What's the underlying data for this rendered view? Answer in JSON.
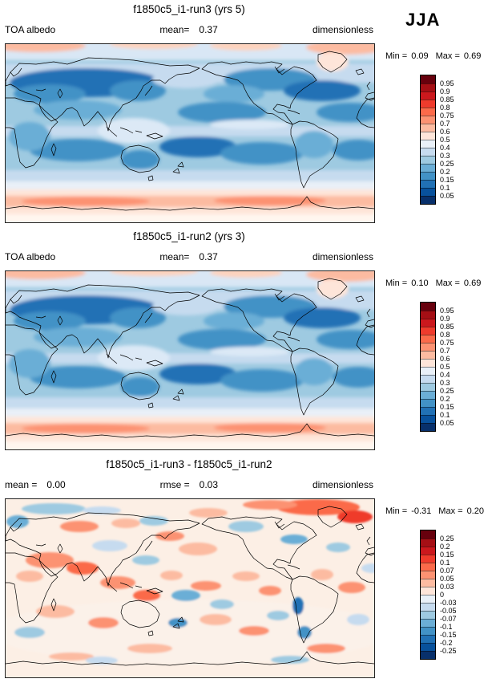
{
  "season": "JJA",
  "panels": [
    {
      "title": "f1850c5_i1-run3 (yrs 5)",
      "left_label": "TOA albedo",
      "left_value": "",
      "center_label": "mean=",
      "center_value": "0.37",
      "right_label": "dimensionless",
      "min_label": "Min =",
      "min_value": "0.09",
      "max_label": "Max =",
      "max_value": "0.69",
      "colorbar": {
        "ticks": [
          "0.95",
          "0.9",
          "0.85",
          "0.8",
          "0.75",
          "0.7",
          "0.6",
          "0.5",
          "0.4",
          "0.3",
          "0.25",
          "0.2",
          "0.15",
          "0.1",
          "0.05"
        ],
        "colors": [
          "#67000d",
          "#a50f15",
          "#cb181d",
          "#ef3b2c",
          "#fb6a4a",
          "#fc9272",
          "#fcbba1",
          "#fee5d9",
          "#e9f0f8",
          "#c6dbef",
          "#9ecae1",
          "#6baed6",
          "#4292c6",
          "#2171b5",
          "#08519c",
          "#08306b"
        ]
      }
    },
    {
      "title": "f1850c5_i1-run2 (yrs 3)",
      "left_label": "TOA albedo",
      "left_value": "",
      "center_label": "mean=",
      "center_value": "0.37",
      "right_label": "dimensionless",
      "min_label": "Min =",
      "min_value": "0.10",
      "max_label": "Max =",
      "max_value": "0.69",
      "colorbar": {
        "ticks": [
          "0.95",
          "0.9",
          "0.85",
          "0.8",
          "0.75",
          "0.7",
          "0.6",
          "0.5",
          "0.4",
          "0.3",
          "0.25",
          "0.2",
          "0.15",
          "0.1",
          "0.05"
        ],
        "colors": [
          "#67000d",
          "#a50f15",
          "#cb181d",
          "#ef3b2c",
          "#fb6a4a",
          "#fc9272",
          "#fcbba1",
          "#fee5d9",
          "#e9f0f8",
          "#c6dbef",
          "#9ecae1",
          "#6baed6",
          "#4292c6",
          "#2171b5",
          "#08519c",
          "#08306b"
        ]
      }
    },
    {
      "title": "f1850c5_i1-run3 - f1850c5_i1-run2",
      "left_label": "mean =",
      "left_value": "0.00",
      "center_label": "rmse =",
      "center_value": "0.03",
      "right_label": "dimensionless",
      "min_label": "Min =",
      "min_value": "-0.31",
      "max_label": "Max =",
      "max_value": "0.20",
      "colorbar": {
        "ticks": [
          "0.25",
          "0.2",
          "0.15",
          "0.1",
          "0.07",
          "0.05",
          "0.03",
          "0",
          "-0.03",
          "-0.05",
          "-0.07",
          "-0.1",
          "-0.15",
          "-0.2",
          "-0.25"
        ],
        "colors": [
          "#67000d",
          "#a50f15",
          "#cb181d",
          "#ef3b2c",
          "#fb6a4a",
          "#fc9272",
          "#fcbba1",
          "#fee5d9",
          "#e9f0f8",
          "#c6dbef",
          "#9ecae1",
          "#6baed6",
          "#4292c6",
          "#2171b5",
          "#08519c",
          "#08306b"
        ]
      }
    }
  ],
  "chart_data": [
    {
      "type": "heatmap",
      "title": "f1850c5_i1-run3 (yrs 5)",
      "variable": "TOA albedo",
      "units": "dimensionless",
      "season": "JJA",
      "projection": "global latitude-longitude map, Pacific-centered",
      "mean": 0.37,
      "min": 0.09,
      "max": 0.69,
      "colorbar_levels": [
        0.05,
        0.1,
        0.15,
        0.2,
        0.25,
        0.3,
        0.4,
        0.5,
        0.6,
        0.7,
        0.75,
        0.8,
        0.85,
        0.9,
        0.95
      ],
      "legend_position": "right"
    },
    {
      "type": "heatmap",
      "title": "f1850c5_i1-run2 (yrs 3)",
      "variable": "TOA albedo",
      "units": "dimensionless",
      "season": "JJA",
      "projection": "global latitude-longitude map, Pacific-centered",
      "mean": 0.37,
      "min": 0.1,
      "max": 0.69,
      "colorbar_levels": [
        0.05,
        0.1,
        0.15,
        0.2,
        0.25,
        0.3,
        0.4,
        0.5,
        0.6,
        0.7,
        0.75,
        0.8,
        0.85,
        0.9,
        0.95
      ],
      "legend_position": "right"
    },
    {
      "type": "heatmap",
      "title": "f1850c5_i1-run3 - f1850c5_i1-run2",
      "variable": "TOA albedo difference",
      "units": "dimensionless",
      "season": "JJA",
      "projection": "global latitude-longitude map, Pacific-centered",
      "mean": 0.0,
      "rmse": 0.03,
      "min": -0.31,
      "max": 0.2,
      "colorbar_levels": [
        -0.25,
        -0.2,
        -0.15,
        -0.1,
        -0.07,
        -0.05,
        -0.03,
        0,
        0.03,
        0.05,
        0.07,
        0.1,
        0.15,
        0.2,
        0.25
      ],
      "legend_position": "right"
    }
  ]
}
